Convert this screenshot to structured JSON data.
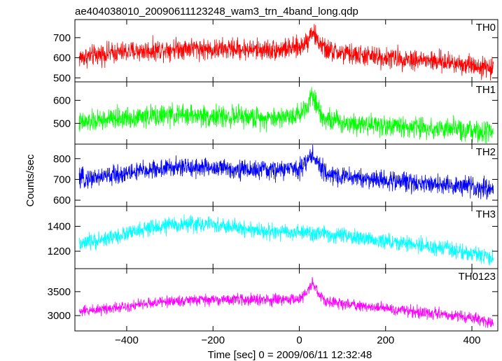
{
  "title": "ae404038010_20090611123248_wam3_trn_4band_long.qdp",
  "ylabel": "Counts/sec",
  "xlabel": "Time [sec] 0 = 2009/06/11 12:32:48",
  "chart_data": [
    {
      "type": "line",
      "name": "TH0",
      "color": "#ff0000",
      "xlim": [
        -520,
        460
      ],
      "ylim": [
        480,
        790
      ],
      "yticks": [
        500,
        600,
        700
      ],
      "xticks": [
        -400,
        -200,
        0,
        200,
        400
      ],
      "x": [
        -510,
        -450,
        -400,
        -350,
        -300,
        -250,
        -200,
        -150,
        -100,
        -50,
        0,
        20,
        30,
        40,
        60,
        100,
        150,
        200,
        250,
        300,
        350,
        400,
        450
      ],
      "y": [
        600,
        620,
        630,
        635,
        645,
        650,
        640,
        645,
        640,
        640,
        650,
        690,
        740,
        690,
        640,
        620,
        610,
        600,
        595,
        585,
        575,
        565,
        545
      ],
      "noise": 45
    },
    {
      "type": "line",
      "name": "TH1",
      "color": "#00ff00",
      "xlim": [
        -520,
        460
      ],
      "ylim": [
        410,
        680
      ],
      "yticks": [
        500,
        600
      ],
      "xticks": [
        -400,
        -200,
        0,
        200,
        400
      ],
      "x": [
        -510,
        -450,
        -400,
        -350,
        -300,
        -250,
        -200,
        -150,
        -100,
        -50,
        0,
        20,
        30,
        40,
        60,
        100,
        150,
        200,
        250,
        300,
        350,
        400,
        450
      ],
      "y": [
        500,
        515,
        525,
        530,
        535,
        535,
        530,
        530,
        525,
        525,
        540,
        580,
        640,
        580,
        520,
        505,
        500,
        490,
        485,
        480,
        475,
        465,
        455
      ],
      "noise": 40
    },
    {
      "type": "line",
      "name": "TH2",
      "color": "#0000ff",
      "xlim": [
        -520,
        460
      ],
      "ylim": [
        570,
        870
      ],
      "yticks": [
        600,
        700,
        800
      ],
      "xticks": [
        -400,
        -200,
        0,
        200,
        400
      ],
      "x": [
        -510,
        -450,
        -400,
        -350,
        -300,
        -250,
        -200,
        -150,
        -100,
        -50,
        0,
        20,
        30,
        40,
        60,
        100,
        150,
        200,
        250,
        300,
        350,
        400,
        450
      ],
      "y": [
        700,
        715,
        730,
        745,
        755,
        760,
        755,
        750,
        745,
        745,
        755,
        790,
        830,
        780,
        730,
        715,
        705,
        695,
        690,
        680,
        670,
        665,
        655
      ],
      "noise": 40
    },
    {
      "type": "line",
      "name": "TH3",
      "color": "#00ffff",
      "xlim": [
        -520,
        460
      ],
      "ylim": [
        1060,
        1560
      ],
      "yticks": [
        1200,
        1400
      ],
      "xticks": [
        -400,
        -200,
        0,
        200,
        400
      ],
      "x": [
        -510,
        -450,
        -400,
        -350,
        -300,
        -250,
        -200,
        -150,
        -100,
        -50,
        0,
        50,
        100,
        150,
        200,
        250,
        300,
        350,
        400,
        450
      ],
      "y": [
        1250,
        1300,
        1340,
        1380,
        1410,
        1420,
        1410,
        1390,
        1370,
        1350,
        1350,
        1340,
        1320,
        1300,
        1280,
        1260,
        1240,
        1210,
        1180,
        1150
      ],
      "noise": 55
    },
    {
      "type": "line",
      "name": "TH0123",
      "color": "#ff00ff",
      "xlim": [
        -520,
        460
      ],
      "ylim": [
        2680,
        3980
      ],
      "yticks": [
        3000,
        3500
      ],
      "xticks": [
        -400,
        -200,
        0,
        200,
        400
      ],
      "x": [
        -510,
        -450,
        -400,
        -350,
        -300,
        -250,
        -200,
        -150,
        -100,
        -50,
        0,
        20,
        30,
        40,
        60,
        100,
        150,
        200,
        250,
        300,
        350,
        400,
        450
      ],
      "y": [
        3080,
        3150,
        3200,
        3250,
        3300,
        3320,
        3330,
        3340,
        3330,
        3320,
        3350,
        3500,
        3700,
        3500,
        3300,
        3250,
        3200,
        3150,
        3100,
        3050,
        3000,
        2950,
        2850
      ],
      "noise": 100
    }
  ]
}
